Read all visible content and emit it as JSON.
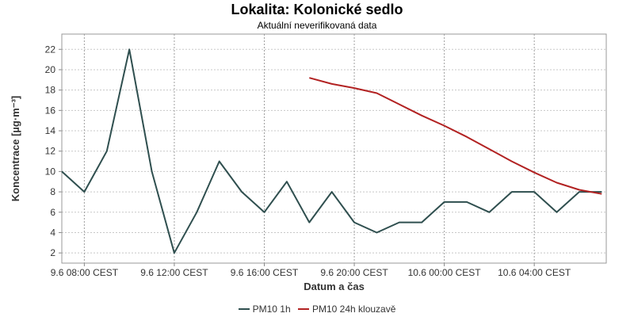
{
  "chart_data": {
    "type": "line",
    "title": "Lokalita: Kolonické sedlo",
    "subtitle": "Aktuální neverifikovaná data",
    "xlabel": "Datum a čas",
    "ylabel": "Koncentrace [µg·m⁻³]",
    "ylim": [
      1,
      23.5
    ],
    "xlim": [
      -1,
      23.2
    ],
    "yticks": [
      2,
      4,
      6,
      8,
      10,
      12,
      14,
      16,
      18,
      20,
      22
    ],
    "xtick_positions": [
      0,
      4,
      8,
      12,
      16,
      20
    ],
    "xtick_labels": [
      "9.6 08:00 CEST",
      "9.6 12:00 CEST",
      "9.6 16:00 CEST",
      "9.6 20:00 CEST",
      "10.6 00:00 CEST",
      "10.6 04:00 CEST"
    ],
    "x_unit": "hours since 9.6 08:00 CEST",
    "grid": true,
    "legend_position": "bottom-center",
    "series": [
      {
        "name": "PM10 1h",
        "color": "#2f4f4f",
        "x": [
          -1,
          0,
          1,
          2,
          3,
          4,
          5,
          6,
          7,
          8,
          9,
          10,
          11,
          12,
          13,
          14,
          15,
          16,
          17,
          18,
          19,
          20,
          21,
          22,
          23
        ],
        "values": [
          10,
          8,
          12,
          22,
          10,
          2,
          6,
          11,
          8,
          6,
          9,
          5,
          8,
          5,
          4,
          5,
          5,
          7,
          7,
          6,
          8,
          8,
          6,
          8,
          8
        ]
      },
      {
        "name": "PM10 24h klouzavě",
        "color": "#b22222",
        "x": [
          10,
          11,
          12,
          13,
          14,
          15,
          16,
          17,
          18,
          19,
          20,
          21,
          22,
          23
        ],
        "values": [
          19.2,
          18.6,
          18.2,
          17.7,
          16.6,
          15.5,
          14.5,
          13.4,
          12.2,
          11.0,
          9.9,
          8.9,
          8.2,
          7.8
        ]
      }
    ]
  }
}
